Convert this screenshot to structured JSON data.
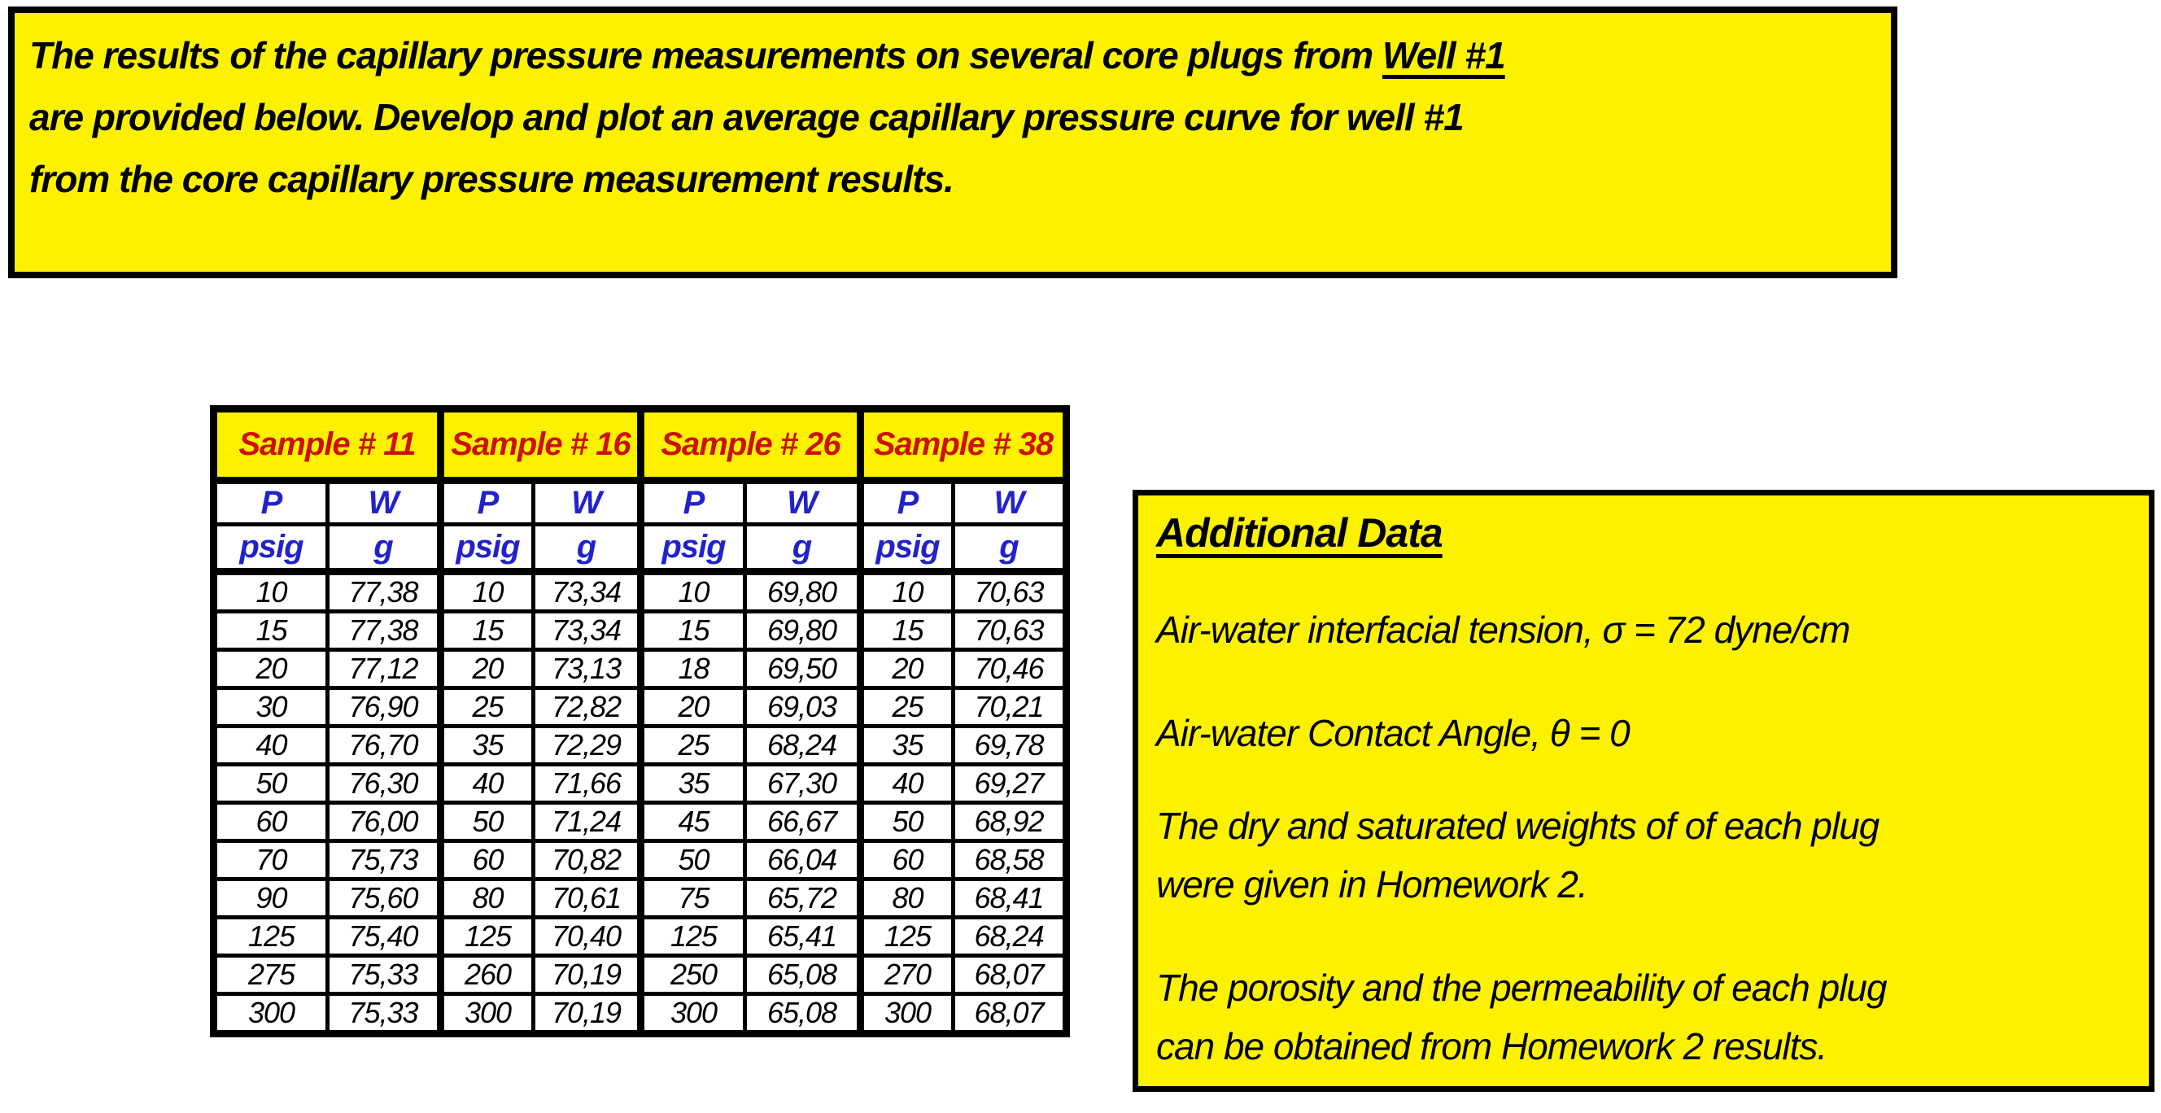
{
  "banner": {
    "line1_pre": "The results of the capillary pressure measurements on several core plugs from ",
    "line1_underline": "Well #1",
    "line2": "are provided below.  Develop and plot an average capillary pressure curve for well #1",
    "line3": "from the core capillary pressure measurement results."
  },
  "table": {
    "samples": [
      "Sample # 11",
      "Sample # 16",
      "Sample # 26",
      "Sample # 38"
    ],
    "p_label": "P",
    "w_label": "W",
    "p_unit": "psig",
    "w_unit": "g",
    "rows": [
      [
        "10",
        "77,38",
        "10",
        "73,34",
        "10",
        "69,80",
        "10",
        "70,63"
      ],
      [
        "15",
        "77,38",
        "15",
        "73,34",
        "15",
        "69,80",
        "15",
        "70,63"
      ],
      [
        "20",
        "77,12",
        "20",
        "73,13",
        "18",
        "69,50",
        "20",
        "70,46"
      ],
      [
        "30",
        "76,90",
        "25",
        "72,82",
        "20",
        "69,03",
        "25",
        "70,21"
      ],
      [
        "40",
        "76,70",
        "35",
        "72,29",
        "25",
        "68,24",
        "35",
        "69,78"
      ],
      [
        "50",
        "76,30",
        "40",
        "71,66",
        "35",
        "67,30",
        "40",
        "69,27"
      ],
      [
        "60",
        "76,00",
        "50",
        "71,24",
        "45",
        "66,67",
        "50",
        "68,92"
      ],
      [
        "70",
        "75,73",
        "60",
        "70,82",
        "50",
        "66,04",
        "60",
        "68,58"
      ],
      [
        "90",
        "75,60",
        "80",
        "70,61",
        "75",
        "65,72",
        "80",
        "68,41"
      ],
      [
        "125",
        "75,40",
        "125",
        "70,40",
        "125",
        "65,41",
        "125",
        "68,24"
      ],
      [
        "275",
        "75,33",
        "260",
        "70,19",
        "250",
        "65,08",
        "270",
        "68,07"
      ],
      [
        "300",
        "75,33",
        "300",
        "70,19",
        "300",
        "65,08",
        "300",
        "68,07"
      ]
    ]
  },
  "additional": {
    "title": "Additional Data",
    "lines": [
      "Air-water interfacial tension, σ = 72 dyne/cm",
      "Air-water Contact Angle, θ = 0",
      "The dry and saturated weights of of each plug",
      "were given in Homework 2.",
      "The porosity and the permeability of each plug",
      "can be obtained from Homework 2 results."
    ]
  },
  "colors": {
    "highlight_yellow": "#FCF200",
    "sample_header_red": "#CC1100",
    "column_header_blue": "#2222CC",
    "text_black": "#000000"
  }
}
